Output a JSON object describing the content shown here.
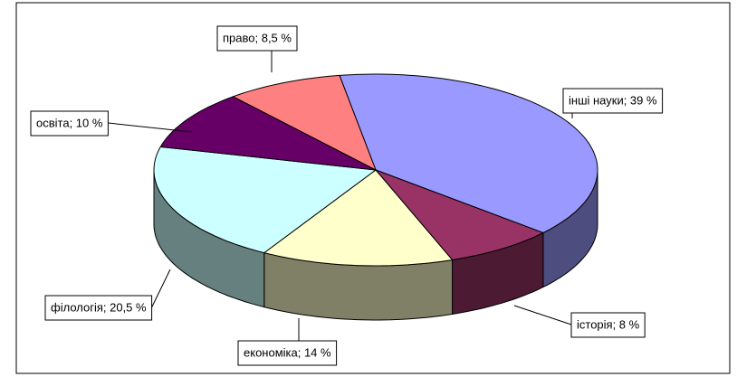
{
  "chart_data": {
    "type": "pie3d",
    "values": [
      39,
      8,
      14,
      20.5,
      10,
      8.5
    ],
    "value_labels": [
      "інші науки; 39 %",
      "історія; 8 %",
      "економіка; 14 %",
      "філологія; 20,5 %",
      "освіта; 10 %",
      "право; 8,5 %"
    ],
    "colors": [
      "#9999ff",
      "#993366",
      "#ffffcc",
      "#ccffff",
      "#660066",
      "#ff8080"
    ]
  }
}
